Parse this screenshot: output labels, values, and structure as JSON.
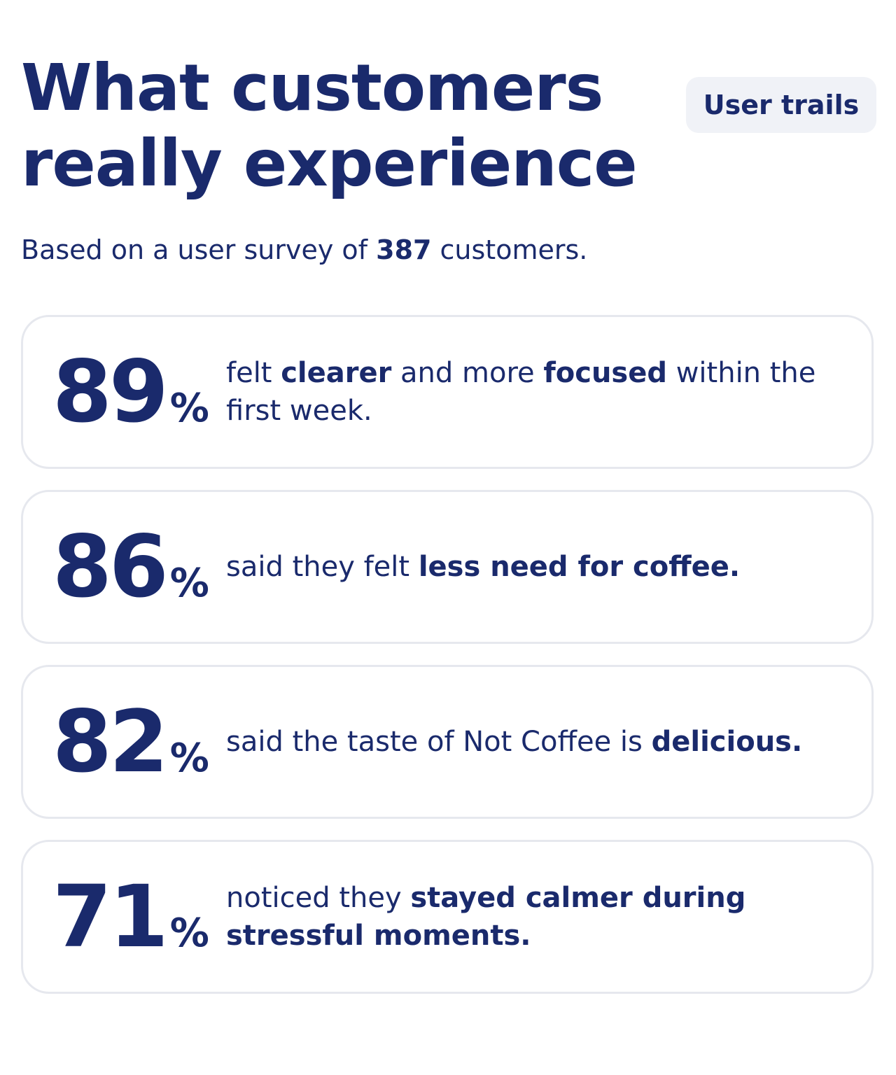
{
  "header": {
    "title": "What customers really experience",
    "badge": "User trails",
    "subtitle": [
      {
        "text": "Based on a user survey of ",
        "bold": false
      },
      {
        "text": "387",
        "bold": true
      },
      {
        "text": " customers.",
        "bold": false
      }
    ]
  },
  "stats": [
    {
      "value": 89,
      "unit": "%",
      "text": [
        {
          "text": "felt ",
          "bold": false
        },
        {
          "text": "clearer",
          "bold": true
        },
        {
          "text": " and more ",
          "bold": false
        },
        {
          "text": "focused",
          "bold": true
        },
        {
          "text": " within the first week.",
          "bold": false
        }
      ]
    },
    {
      "value": 86,
      "unit": "%",
      "text": [
        {
          "text": "said they felt ",
          "bold": false
        },
        {
          "text": "less need for coffee.",
          "bold": true
        }
      ]
    },
    {
      "value": 82,
      "unit": "%",
      "text": [
        {
          "text": "said the taste of Not Coffee is ",
          "bold": false
        },
        {
          "text": "delicious.",
          "bold": true
        }
      ]
    },
    {
      "value": 71,
      "unit": "%",
      "text": [
        {
          "text": "noticed they ",
          "bold": false
        },
        {
          "text": "stayed calmer during stressful moments.",
          "bold": true
        }
      ]
    }
  ]
}
